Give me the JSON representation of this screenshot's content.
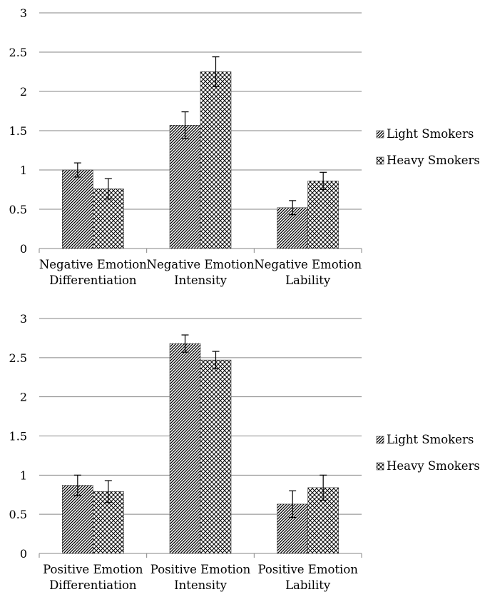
{
  "chart_data": [
    {
      "type": "bar",
      "title": "",
      "xlabel": "",
      "ylabel": "",
      "ylim": [
        0,
        3
      ],
      "yticks": [
        "0",
        "0.5",
        "1",
        "1.5",
        "2",
        "2.5",
        "3"
      ],
      "grid": true,
      "legend_position": "right",
      "categories": [
        [
          "Negative Emotion",
          "Differentiation"
        ],
        [
          "Negative Emotion",
          "Intensity"
        ],
        [
          "Negative Emotion",
          "Lability"
        ]
      ],
      "series": [
        {
          "name": "Light Smokers",
          "pattern": "diagonal-hatch",
          "values": [
            1.0,
            1.57,
            0.52
          ],
          "error": [
            0.09,
            0.17,
            0.09
          ]
        },
        {
          "name": "Heavy Smokers",
          "pattern": "crosshatch",
          "values": [
            0.76,
            2.25,
            0.86
          ],
          "error": [
            0.13,
            0.19,
            0.11
          ]
        }
      ]
    },
    {
      "type": "bar",
      "title": "",
      "xlabel": "",
      "ylabel": "",
      "ylim": [
        0,
        3
      ],
      "yticks": [
        "0",
        "0.5",
        "1",
        "1.5",
        "2",
        "2.5",
        "3"
      ],
      "grid": true,
      "legend_position": "right",
      "categories": [
        [
          "Positive Emotion",
          "Differentiation"
        ],
        [
          "Positive Emotion",
          "Intensity"
        ],
        [
          "Positive Emotion",
          "Lability"
        ]
      ],
      "series": [
        {
          "name": "Light Smokers",
          "pattern": "diagonal-hatch",
          "values": [
            0.87,
            2.68,
            0.63
          ],
          "error": [
            0.13,
            0.11,
            0.17
          ]
        },
        {
          "name": "Heavy Smokers",
          "pattern": "crosshatch",
          "values": [
            0.79,
            2.47,
            0.84
          ],
          "error": [
            0.14,
            0.11,
            0.16
          ]
        }
      ]
    }
  ]
}
